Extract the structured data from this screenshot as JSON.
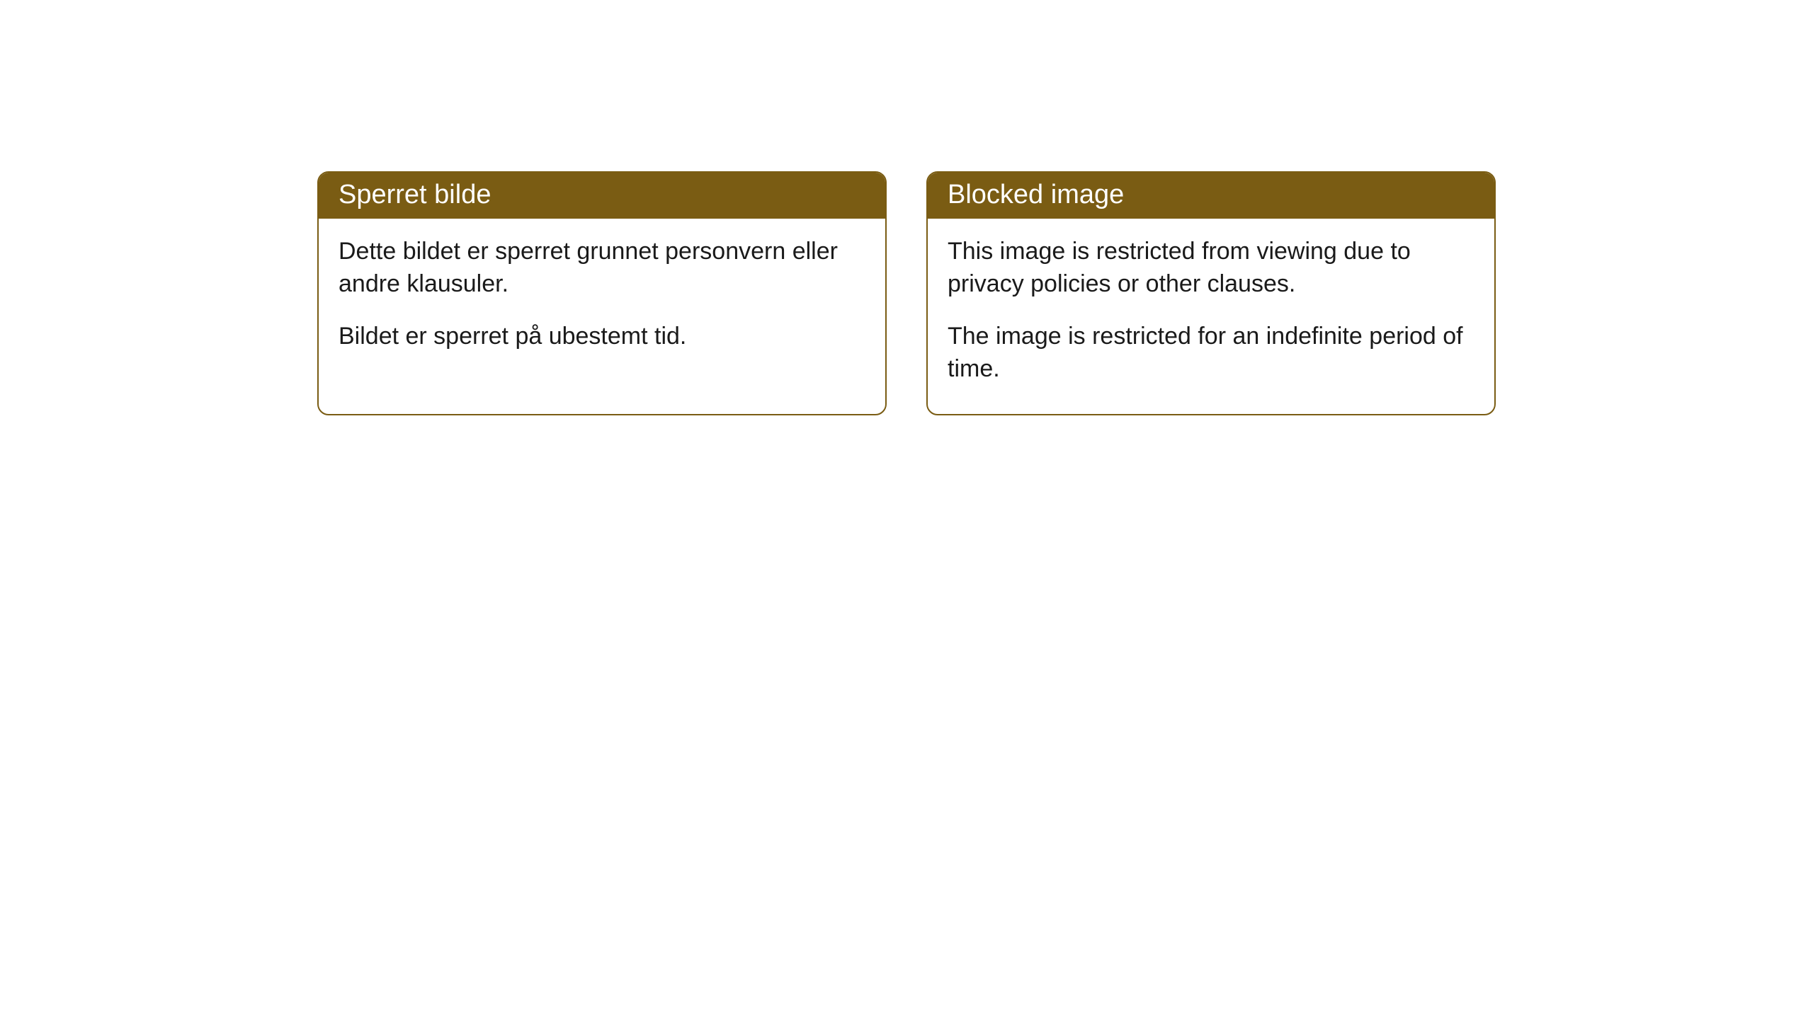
{
  "cards": [
    {
      "title": "Sperret bilde",
      "paragraph1": "Dette bildet er sperret grunnet personvern eller andre klausuler.",
      "paragraph2": "Bildet er sperret på ubestemt tid."
    },
    {
      "title": "Blocked image",
      "paragraph1": "This image is restricted from viewing due to privacy policies or other clauses.",
      "paragraph2": "The image is restricted for an indefinite period of time."
    }
  ],
  "style": {
    "header_bg": "#7a5c13",
    "header_text_color": "#ffffff",
    "border_color": "#7a5c13",
    "body_bg": "#ffffff",
    "text_color": "#1a1a1a",
    "border_radius": 16,
    "title_fontsize": 38,
    "body_fontsize": 34
  }
}
